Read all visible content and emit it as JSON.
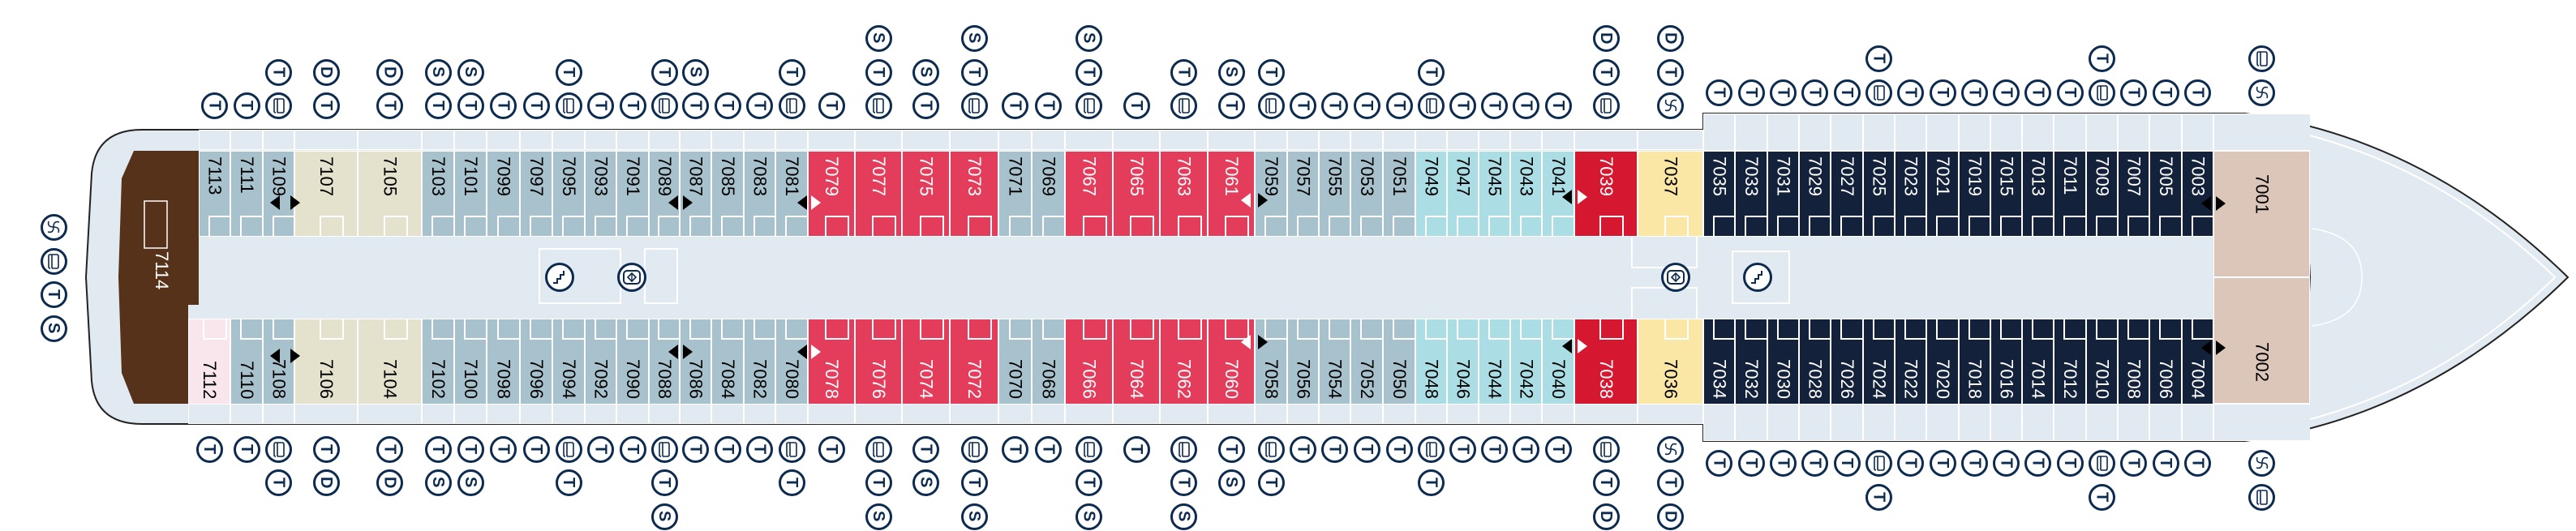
{
  "deck": {
    "colors": {
      "gb": "#a7c2cc",
      "beige": "#e4e1cc",
      "red": "#e43d5c",
      "darkred": "#d5172f",
      "cyan": "#abdde4",
      "yellow": "#fae7a5",
      "navy": "#13213b",
      "tan": "#dcc6b9",
      "brown": "#57321a",
      "pink": "#f9e5ec",
      "icon": "#0d2a4f",
      "deck_floor": "#e2eaf1"
    },
    "stern_cabin": {
      "number": "7114",
      "category": "brown"
    },
    "stern_icons": [
      "whirlpool",
      "pullman",
      "T",
      "S"
    ],
    "corridor_icons": [
      "stairs",
      "elevator",
      "elevator",
      "stairs"
    ],
    "top_cabins": [
      {
        "number": "7113",
        "category": "gb",
        "icons": [
          "T"
        ]
      },
      {
        "number": "7111",
        "category": "gb",
        "icons": [
          "T"
        ]
      },
      {
        "number": "7109",
        "category": "gb",
        "icons": [
          "pullman",
          "T"
        ]
      },
      {
        "number": "7107",
        "category": "beige",
        "icons": [
          "T",
          "D"
        ]
      },
      {
        "number": "7105",
        "category": "beige",
        "icons": [
          "T",
          "D"
        ]
      },
      {
        "number": "7103",
        "category": "gb",
        "icons": [
          "T",
          "S"
        ]
      },
      {
        "number": "7101",
        "category": "gb",
        "icons": [
          "T",
          "S"
        ]
      },
      {
        "number": "7099",
        "category": "gb",
        "icons": [
          "T"
        ]
      },
      {
        "number": "7097",
        "category": "gb",
        "icons": [
          "T"
        ]
      },
      {
        "number": "7095",
        "category": "gb",
        "icons": [
          "pullman",
          "T"
        ]
      },
      {
        "number": "7093",
        "category": "gb",
        "icons": [
          "T"
        ]
      },
      {
        "number": "7091",
        "category": "gb",
        "icons": [
          "T"
        ]
      },
      {
        "number": "7089",
        "category": "gb",
        "icons": [
          "pullman",
          "T"
        ]
      },
      {
        "number": "7087",
        "category": "gb",
        "icons": [
          "T",
          "S"
        ]
      },
      {
        "number": "7085",
        "category": "gb",
        "icons": [
          "T"
        ]
      },
      {
        "number": "7083",
        "category": "gb",
        "icons": [
          "T"
        ]
      },
      {
        "number": "7081",
        "category": "gb",
        "icons": [
          "pullman",
          "T"
        ]
      },
      {
        "number": "7079",
        "category": "red",
        "icons": [
          "T"
        ]
      },
      {
        "number": "7077",
        "category": "red",
        "icons": [
          "pullman",
          "T",
          "S"
        ]
      },
      {
        "number": "7075",
        "category": "red",
        "icons": [
          "T",
          "S"
        ]
      },
      {
        "number": "7073",
        "category": "red",
        "icons": [
          "pullman",
          "T",
          "S"
        ]
      },
      {
        "number": "7071",
        "category": "gb",
        "icons": [
          "T"
        ]
      },
      {
        "number": "7069",
        "category": "gb",
        "icons": [
          "T"
        ]
      },
      {
        "number": "7067",
        "category": "red",
        "icons": [
          "pullman",
          "T",
          "S"
        ]
      },
      {
        "number": "7065",
        "category": "red",
        "icons": [
          "T"
        ]
      },
      {
        "number": "7063",
        "category": "red",
        "icons": [
          "pullman",
          "T"
        ]
      },
      {
        "number": "7061",
        "category": "red",
        "icons": [
          "T",
          "S"
        ]
      },
      {
        "number": "7059",
        "category": "gb",
        "icons": [
          "pullman",
          "T"
        ]
      },
      {
        "number": "7057",
        "category": "gb",
        "icons": [
          "T"
        ]
      },
      {
        "number": "7055",
        "category": "gb",
        "icons": [
          "T"
        ]
      },
      {
        "number": "7053",
        "category": "gb",
        "icons": [
          "T"
        ]
      },
      {
        "number": "7051",
        "category": "gb",
        "icons": [
          "T"
        ]
      },
      {
        "number": "7049",
        "category": "cyan",
        "icons": [
          "pullman",
          "T"
        ]
      },
      {
        "number": "7047",
        "category": "cyan",
        "icons": [
          "T"
        ]
      },
      {
        "number": "7045",
        "category": "cyan",
        "icons": [
          "T"
        ]
      },
      {
        "number": "7043",
        "category": "cyan",
        "icons": [
          "T"
        ]
      },
      {
        "number": "7041",
        "category": "cyan",
        "icons": [
          "T"
        ]
      },
      {
        "number": "7039",
        "category": "darkred",
        "icons": [
          "pullman",
          "T",
          "D"
        ]
      },
      {
        "number": "7037",
        "category": "yellow",
        "icons": [
          "whirlpool",
          "T",
          "D"
        ]
      },
      {
        "number": "7035",
        "category": "navy",
        "icons": [
          "T"
        ]
      },
      {
        "number": "7033",
        "category": "navy",
        "icons": [
          "T"
        ]
      },
      {
        "number": "7031",
        "category": "navy",
        "icons": [
          "T"
        ]
      },
      {
        "number": "7029",
        "category": "navy",
        "icons": [
          "T"
        ]
      },
      {
        "number": "7027",
        "category": "navy",
        "icons": [
          "T"
        ]
      },
      {
        "number": "7025",
        "category": "navy",
        "icons": [
          "pullman",
          "T"
        ]
      },
      {
        "number": "7023",
        "category": "navy",
        "icons": [
          "T"
        ]
      },
      {
        "number": "7021",
        "category": "navy",
        "icons": [
          "T"
        ]
      },
      {
        "number": "7019",
        "category": "navy",
        "icons": [
          "T"
        ]
      },
      {
        "number": "7015",
        "category": "navy",
        "icons": [
          "T"
        ]
      },
      {
        "number": "7013",
        "category": "navy",
        "icons": [
          "T"
        ]
      },
      {
        "number": "7011",
        "category": "navy",
        "icons": [
          "T"
        ]
      },
      {
        "number": "7009",
        "category": "navy",
        "icons": [
          "pullman",
          "T"
        ]
      },
      {
        "number": "7007",
        "category": "navy",
        "icons": [
          "T"
        ]
      },
      {
        "number": "7005",
        "category": "navy",
        "icons": [
          "T"
        ]
      },
      {
        "number": "7003",
        "category": "navy",
        "icons": [
          "T"
        ]
      },
      {
        "number": "7001",
        "category": "tan",
        "icons": [
          "whirlpool",
          "pullman"
        ]
      }
    ],
    "bottom_cabins": [
      {
        "number": "7112",
        "category": "pink",
        "icons": [
          "T"
        ]
      },
      {
        "number": "7110",
        "category": "gb",
        "icons": [
          "T"
        ]
      },
      {
        "number": "7108",
        "category": "gb",
        "icons": [
          "pullman",
          "T"
        ]
      },
      {
        "number": "7106",
        "category": "beige",
        "icons": [
          "T",
          "D"
        ]
      },
      {
        "number": "7104",
        "category": "beige",
        "icons": [
          "T",
          "D"
        ]
      },
      {
        "number": "7102",
        "category": "gb",
        "icons": [
          "T",
          "S"
        ]
      },
      {
        "number": "7100",
        "category": "gb",
        "icons": [
          "T",
          "S"
        ]
      },
      {
        "number": "7098",
        "category": "gb",
        "icons": [
          "T"
        ]
      },
      {
        "number": "7096",
        "category": "gb",
        "icons": [
          "T"
        ]
      },
      {
        "number": "7094",
        "category": "gb",
        "icons": [
          "pullman",
          "T"
        ]
      },
      {
        "number": "7092",
        "category": "gb",
        "icons": [
          "T"
        ]
      },
      {
        "number": "7090",
        "category": "gb",
        "icons": [
          "T"
        ]
      },
      {
        "number": "7088",
        "category": "gb",
        "icons": [
          "pullman",
          "T",
          "S"
        ]
      },
      {
        "number": "7086",
        "category": "gb",
        "icons": [
          "T"
        ]
      },
      {
        "number": "7084",
        "category": "gb",
        "icons": [
          "T"
        ]
      },
      {
        "number": "7082",
        "category": "gb",
        "icons": [
          "T"
        ]
      },
      {
        "number": "7080",
        "category": "gb",
        "icons": [
          "pullman",
          "T"
        ]
      },
      {
        "number": "7078",
        "category": "red",
        "icons": [
          "T"
        ]
      },
      {
        "number": "7076",
        "category": "red",
        "icons": [
          "pullman",
          "T",
          "S"
        ]
      },
      {
        "number": "7074",
        "category": "red",
        "icons": [
          "T",
          "S"
        ]
      },
      {
        "number": "7072",
        "category": "red",
        "icons": [
          "pullman",
          "T",
          "S"
        ]
      },
      {
        "number": "7070",
        "category": "gb",
        "icons": [
          "T"
        ]
      },
      {
        "number": "7068",
        "category": "gb",
        "icons": [
          "T"
        ]
      },
      {
        "number": "7066",
        "category": "red",
        "icons": [
          "pullman",
          "T",
          "S"
        ]
      },
      {
        "number": "7064",
        "category": "red",
        "icons": [
          "T"
        ]
      },
      {
        "number": "7062",
        "category": "red",
        "icons": [
          "pullman",
          "T",
          "S"
        ]
      },
      {
        "number": "7060",
        "category": "red",
        "icons": [
          "T",
          "S"
        ]
      },
      {
        "number": "7058",
        "category": "gb",
        "icons": [
          "pullman",
          "T"
        ]
      },
      {
        "number": "7056",
        "category": "gb",
        "icons": [
          "T"
        ]
      },
      {
        "number": "7054",
        "category": "gb",
        "icons": [
          "T"
        ]
      },
      {
        "number": "7052",
        "category": "gb",
        "icons": [
          "T"
        ]
      },
      {
        "number": "7050",
        "category": "gb",
        "icons": [
          "T"
        ]
      },
      {
        "number": "7048",
        "category": "cyan",
        "icons": [
          "pullman",
          "T"
        ]
      },
      {
        "number": "7046",
        "category": "cyan",
        "icons": [
          "T"
        ]
      },
      {
        "number": "7044",
        "category": "cyan",
        "icons": [
          "T"
        ]
      },
      {
        "number": "7042",
        "category": "cyan",
        "icons": [
          "T"
        ]
      },
      {
        "number": "7040",
        "category": "cyan",
        "icons": [
          "T"
        ]
      },
      {
        "number": "7038",
        "category": "darkred",
        "icons": [
          "pullman",
          "T",
          "D"
        ]
      },
      {
        "number": "7036",
        "category": "yellow",
        "icons": [
          "whirlpool",
          "T",
          "D"
        ]
      },
      {
        "number": "7034",
        "category": "navy",
        "icons": [
          "T"
        ]
      },
      {
        "number": "7032",
        "category": "navy",
        "icons": [
          "T"
        ]
      },
      {
        "number": "7030",
        "category": "navy",
        "icons": [
          "T"
        ]
      },
      {
        "number": "7028",
        "category": "navy",
        "icons": [
          "T"
        ]
      },
      {
        "number": "7026",
        "category": "navy",
        "icons": [
          "T"
        ]
      },
      {
        "number": "7024",
        "category": "navy",
        "icons": [
          "pullman",
          "T"
        ]
      },
      {
        "number": "7022",
        "category": "navy",
        "icons": [
          "T"
        ]
      },
      {
        "number": "7020",
        "category": "navy",
        "icons": [
          "T"
        ]
      },
      {
        "number": "7018",
        "category": "navy",
        "icons": [
          "T"
        ]
      },
      {
        "number": "7016",
        "category": "navy",
        "icons": [
          "T"
        ]
      },
      {
        "number": "7014",
        "category": "navy",
        "icons": [
          "T"
        ]
      },
      {
        "number": "7012",
        "category": "navy",
        "icons": [
          "T"
        ]
      },
      {
        "number": "7010",
        "category": "navy",
        "icons": [
          "pullman",
          "T"
        ]
      },
      {
        "number": "7008",
        "category": "navy",
        "icons": [
          "T"
        ]
      },
      {
        "number": "7006",
        "category": "navy",
        "icons": [
          "T"
        ]
      },
      {
        "number": "7004",
        "category": "navy",
        "icons": [
          "T"
        ]
      },
      {
        "number": "7002",
        "category": "tan",
        "icons": [
          "whirlpool",
          "pullman"
        ]
      }
    ]
  }
}
